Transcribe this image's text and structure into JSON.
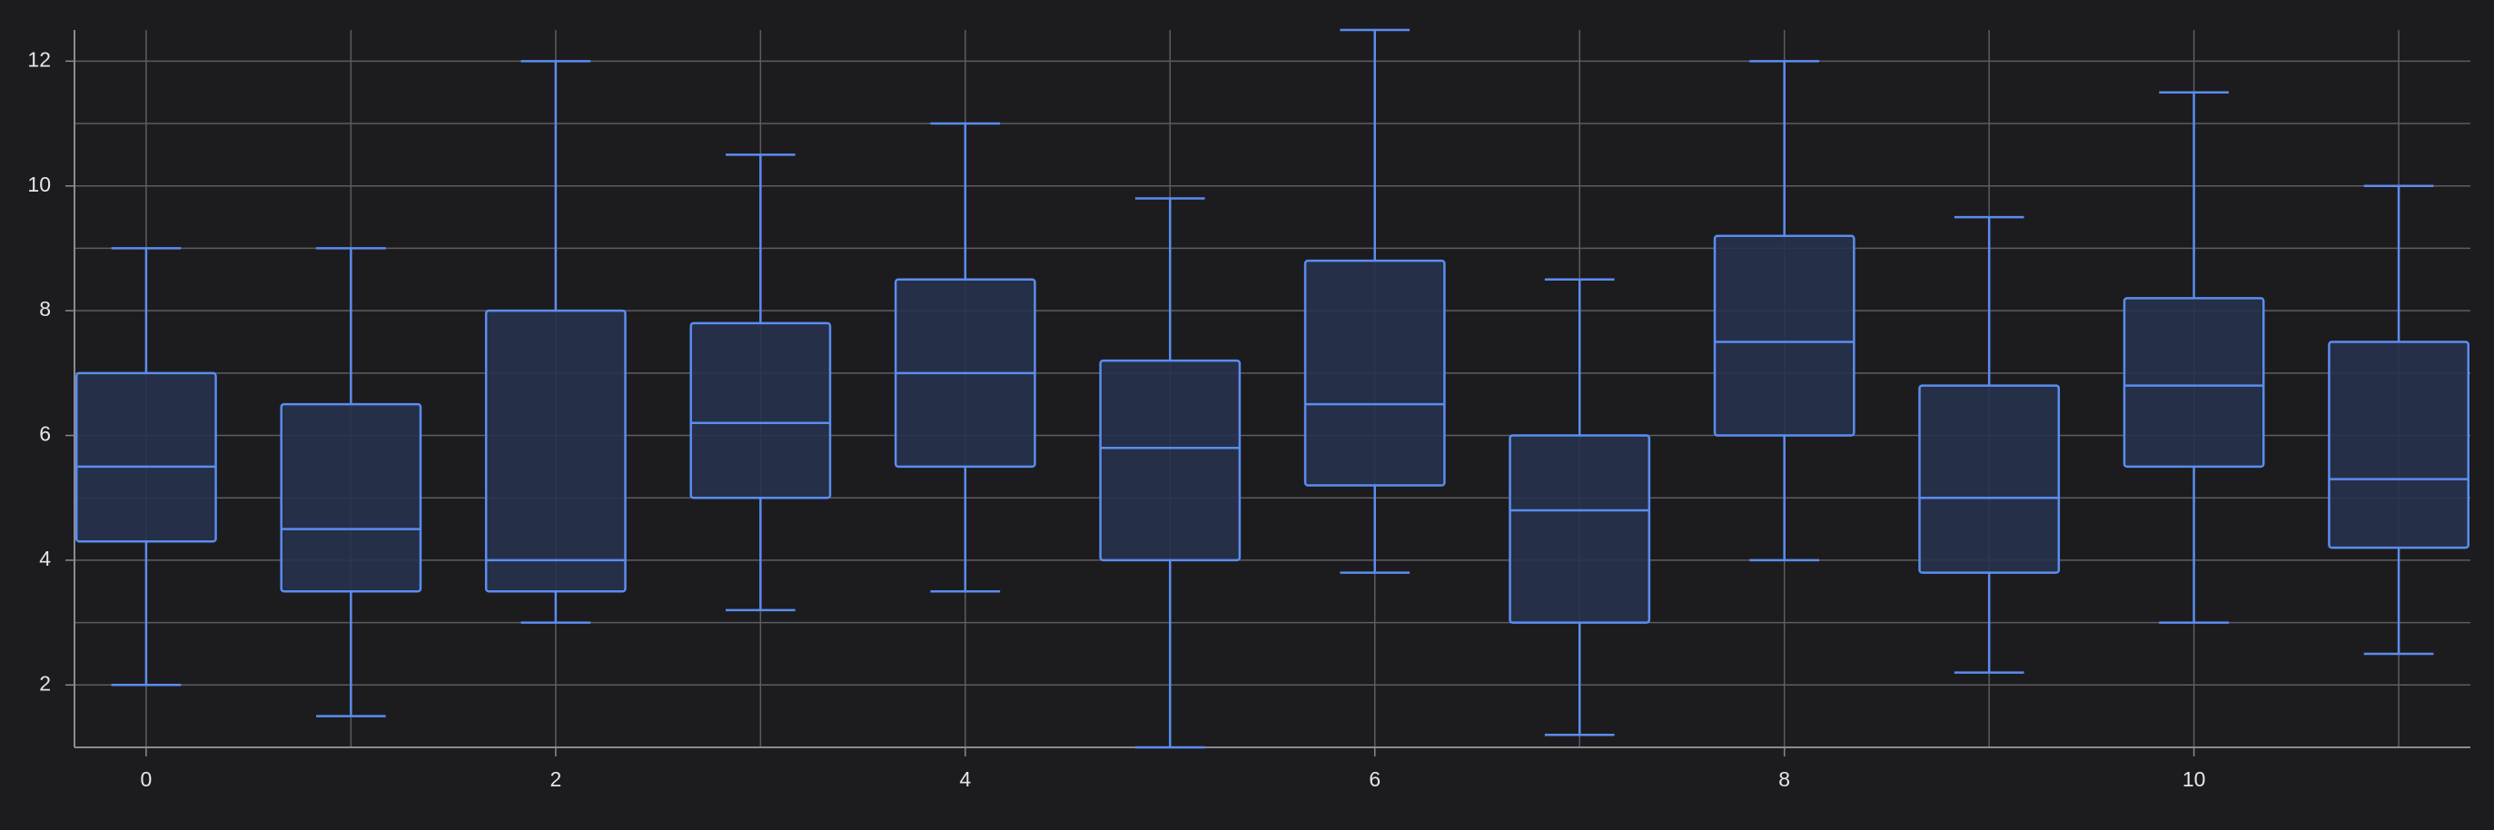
{
  "chart_data": {
    "type": "box",
    "x": [
      0,
      1,
      2,
      3,
      4,
      5,
      6,
      7,
      8,
      9,
      10,
      11
    ],
    "whisker_low": [
      2,
      1.5,
      3,
      3.2,
      3.5,
      1,
      3.8,
      1.2,
      4,
      2.2,
      3,
      2.5
    ],
    "q1": [
      4.3,
      3.5,
      3.5,
      5,
      5.5,
      4,
      5.2,
      3,
      6,
      3.8,
      5.5,
      4.2
    ],
    "median": [
      5.5,
      4.5,
      4,
      6.2,
      7,
      5.8,
      6.5,
      4.8,
      7.5,
      5,
      6.8,
      5.3
    ],
    "q3": [
      7,
      6.5,
      8,
      7.8,
      8.5,
      7.2,
      8.8,
      6,
      9.2,
      6.8,
      8.2,
      7.5
    ],
    "whisker_high": [
      9,
      9,
      12,
      10.5,
      11,
      9.8,
      12.5,
      8.5,
      12,
      9.5,
      11.5,
      10
    ],
    "color": "#5b8def",
    "fill": "#27324d",
    "xlim": [
      -0.35,
      11.35
    ],
    "ylim": [
      1,
      12.5
    ],
    "xticks": [
      0,
      2,
      4,
      6,
      8,
      10
    ],
    "xminor": [
      1,
      3,
      5,
      7,
      9,
      11
    ],
    "yticks": [
      2,
      4,
      6,
      8,
      10,
      12
    ],
    "yminor": [
      3,
      5,
      7,
      9,
      11
    ],
    "grid": true
  }
}
